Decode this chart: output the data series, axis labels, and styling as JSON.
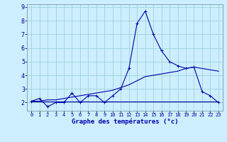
{
  "xlabel": "Graphe des températures (°c)",
  "background_color": "#cceeff",
  "line_color": "#0000aa",
  "grid_color": "#99cccc",
  "xlim": [
    -0.5,
    23.5
  ],
  "ylim": [
    1.4,
    9.2
  ],
  "xticks": [
    0,
    1,
    2,
    3,
    4,
    5,
    6,
    7,
    8,
    9,
    10,
    11,
    12,
    13,
    14,
    15,
    16,
    17,
    18,
    19,
    20,
    21,
    22,
    23
  ],
  "yticks": [
    2,
    3,
    4,
    5,
    6,
    7,
    8,
    9
  ],
  "hours": [
    0,
    1,
    2,
    3,
    4,
    5,
    6,
    7,
    8,
    9,
    10,
    11,
    12,
    13,
    14,
    15,
    16,
    17,
    18,
    19,
    20,
    21,
    22,
    23
  ],
  "temp_line1": [
    2.1,
    2.3,
    1.7,
    2.0,
    2.0,
    2.7,
    2.0,
    2.5,
    2.5,
    2.0,
    2.5,
    3.0,
    4.5,
    7.8,
    8.7,
    7.0,
    5.8,
    5.0,
    4.7,
    4.5,
    4.6,
    2.8,
    2.5,
    2.0
  ],
  "temp_line2": [
    2.1,
    2.1,
    2.1,
    2.1,
    2.1,
    2.1,
    2.1,
    2.1,
    2.1,
    2.1,
    2.1,
    2.1,
    2.1,
    2.1,
    2.1,
    2.1,
    2.1,
    2.1,
    2.1,
    2.1,
    2.1,
    2.1,
    2.1,
    2.1
  ],
  "temp_line3": [
    2.1,
    2.1,
    2.2,
    2.2,
    2.3,
    2.4,
    2.5,
    2.6,
    2.7,
    2.8,
    2.9,
    3.1,
    3.3,
    3.6,
    3.9,
    4.0,
    4.1,
    4.2,
    4.3,
    4.5,
    4.6,
    4.5,
    4.4,
    4.3
  ]
}
